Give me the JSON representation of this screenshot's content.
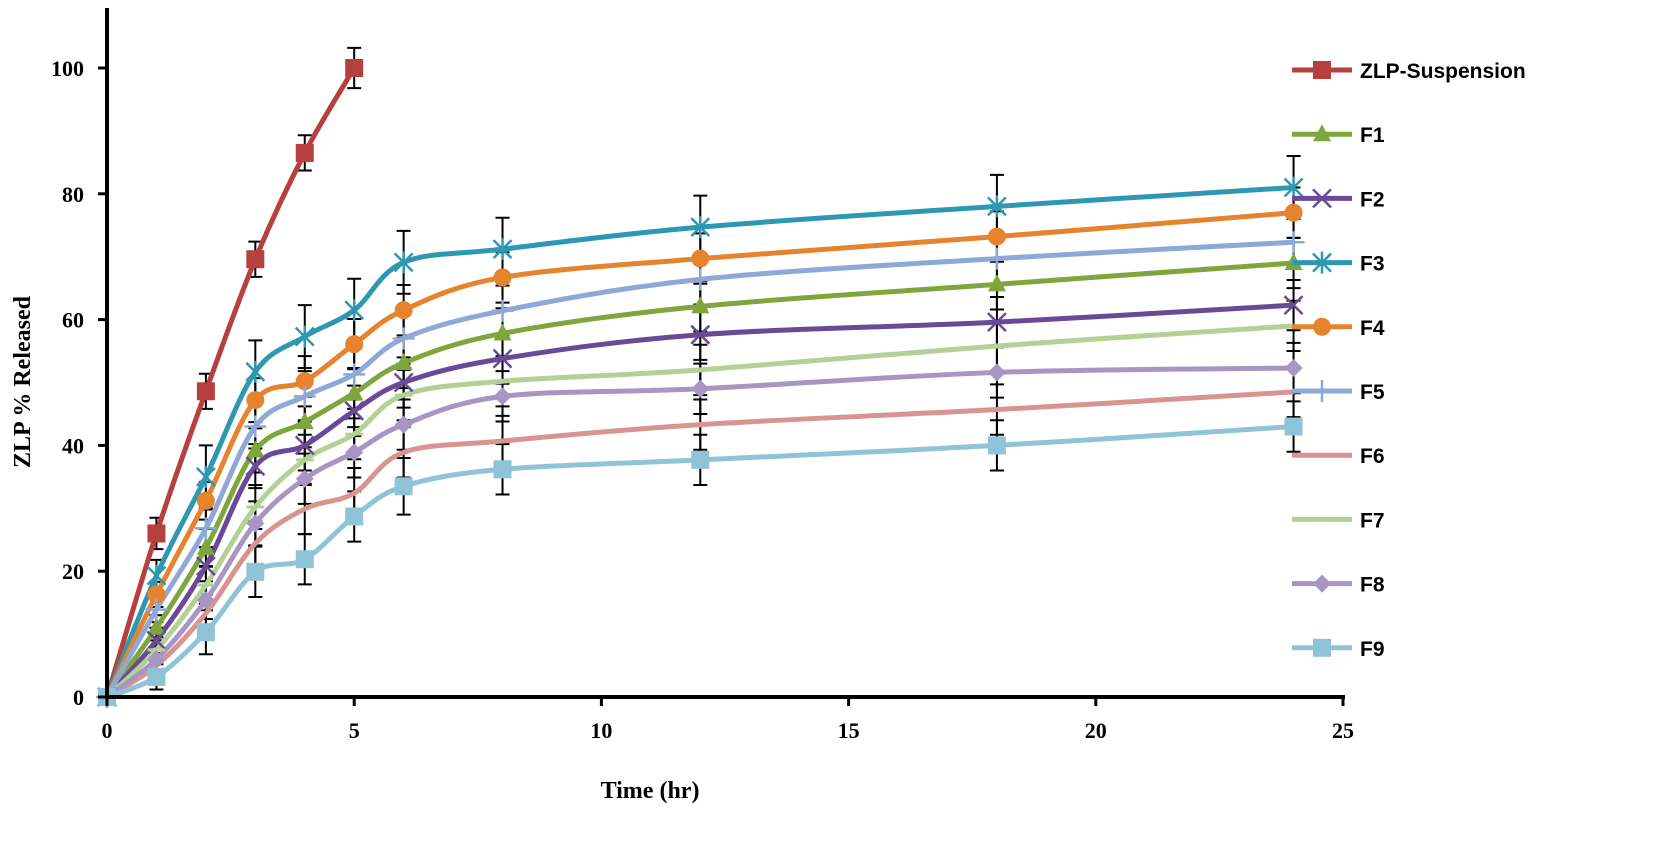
{
  "chart_data": {
    "type": "line",
    "title": "",
    "xlabel": "Time (hr)",
    "ylabel": "ZLP % Released",
    "xlim": [
      0,
      25
    ],
    "ylim": [
      0,
      100
    ],
    "xticks": [
      0,
      5,
      10,
      15,
      20,
      25
    ],
    "yticks": [
      0,
      20,
      40,
      60,
      80,
      100
    ],
    "grid": false,
    "legend_position": "right",
    "series": [
      {
        "name": "ZLP-Suspension",
        "color": "#b5403d",
        "marker": "square",
        "x": [
          0,
          1,
          2,
          3,
          4,
          5
        ],
        "values": [
          0,
          26,
          48.6,
          69.6,
          86.5,
          100
        ],
        "error": [
          0,
          2.5,
          2.8,
          2.8,
          2.8,
          3.2
        ]
      },
      {
        "name": "F1",
        "color": "#7fa63c",
        "marker": "triangle",
        "x": [
          0,
          1,
          2,
          3,
          4,
          5,
          6,
          8,
          12,
          18,
          24
        ],
        "values": [
          0,
          11,
          23.7,
          39.2,
          43.7,
          48.3,
          53.1,
          57.8,
          62.1,
          65.6,
          69
        ],
        "error": [
          0,
          2,
          3,
          3.5,
          4,
          4,
          4,
          4,
          4,
          4,
          4
        ]
      },
      {
        "name": "F2",
        "color": "#6a4a96",
        "marker": "x",
        "x": [
          0,
          1,
          2,
          3,
          4,
          5,
          6,
          8,
          12,
          18,
          24
        ],
        "values": [
          0,
          9,
          20.8,
          36.7,
          40,
          45.5,
          50,
          53.8,
          57.6,
          59.6,
          62.3
        ],
        "error": [
          0,
          2,
          3,
          3.5,
          4,
          4,
          4,
          4,
          4,
          4,
          4
        ]
      },
      {
        "name": "F3",
        "color": "#2e98b2",
        "marker": "asterisk",
        "x": [
          0,
          1,
          2,
          3,
          4,
          5,
          6,
          8,
          12,
          18,
          24
        ],
        "values": [
          0,
          19.3,
          35,
          51.7,
          57.3,
          61.5,
          69.1,
          71.2,
          74.7,
          78,
          81
        ],
        "error": [
          0,
          2.5,
          5,
          5,
          5,
          5,
          5,
          5,
          5,
          5,
          5
        ]
      },
      {
        "name": "F4",
        "color": "#e5832f",
        "marker": "circle",
        "x": [
          0,
          1,
          2,
          3,
          4,
          5,
          6,
          8,
          12,
          18,
          24
        ],
        "values": [
          0,
          16.3,
          31.2,
          47.2,
          50.2,
          56.1,
          61.5,
          66.7,
          69.7,
          73.2,
          77
        ],
        "error": [
          0,
          2,
          3,
          3.5,
          4,
          4,
          4,
          4,
          4,
          4,
          4
        ]
      },
      {
        "name": "F5",
        "color": "#8ea9d7",
        "marker": "plus",
        "x": [
          0,
          1,
          2,
          3,
          4,
          5,
          6,
          8,
          12,
          18,
          24
        ],
        "values": [
          0,
          13.9,
          26.8,
          43,
          47.8,
          51.3,
          57,
          61.4,
          66.4,
          69.7,
          72.3
        ],
        "error": [
          0,
          2,
          3,
          3.5,
          4,
          4,
          4,
          4,
          4,
          4,
          4
        ]
      },
      {
        "name": "F6",
        "color": "#d99391",
        "marker": "none",
        "x": [
          0,
          1,
          2,
          3,
          4,
          5,
          6,
          8,
          12,
          18,
          24
        ],
        "values": [
          0,
          5,
          13.3,
          24.4,
          29.9,
          32.4,
          38.9,
          40.7,
          43.3,
          45.7,
          48.5
        ],
        "error": [
          0,
          2,
          3,
          3.5,
          4,
          4,
          4,
          4,
          4,
          4,
          4
        ]
      },
      {
        "name": "F7",
        "color": "#b3d095",
        "marker": "dash",
        "x": [
          0,
          1,
          2,
          3,
          4,
          5,
          6,
          8,
          12,
          18,
          24
        ],
        "values": [
          0,
          7.5,
          17.8,
          30.2,
          37.7,
          41.8,
          48,
          50.2,
          52,
          55.8,
          59
        ],
        "error": [
          0,
          2,
          3,
          3.5,
          4,
          4,
          4,
          4,
          4,
          4,
          4
        ]
      },
      {
        "name": "F8",
        "color": "#a795c3",
        "marker": "diamond",
        "x": [
          0,
          1,
          2,
          3,
          4,
          5,
          6,
          8,
          12,
          18,
          24
        ],
        "values": [
          0,
          6,
          15.4,
          27.6,
          34.7,
          38.9,
          43.3,
          47.8,
          49,
          51.6,
          52.3
        ],
        "error": [
          0,
          2,
          3,
          3.5,
          4,
          4,
          4,
          4,
          4,
          4,
          4
        ]
      },
      {
        "name": "F9",
        "color": "#8fc3d7",
        "marker": "square",
        "x": [
          0,
          1,
          2,
          3,
          4,
          5,
          6,
          8,
          12,
          18,
          24
        ],
        "values": [
          0,
          3.2,
          10.3,
          19.9,
          21.9,
          28.7,
          33.5,
          36.2,
          37.7,
          40,
          43
        ],
        "error": [
          0,
          2,
          3.5,
          4,
          4,
          4,
          4.5,
          4,
          4,
          4,
          4
        ]
      }
    ]
  }
}
